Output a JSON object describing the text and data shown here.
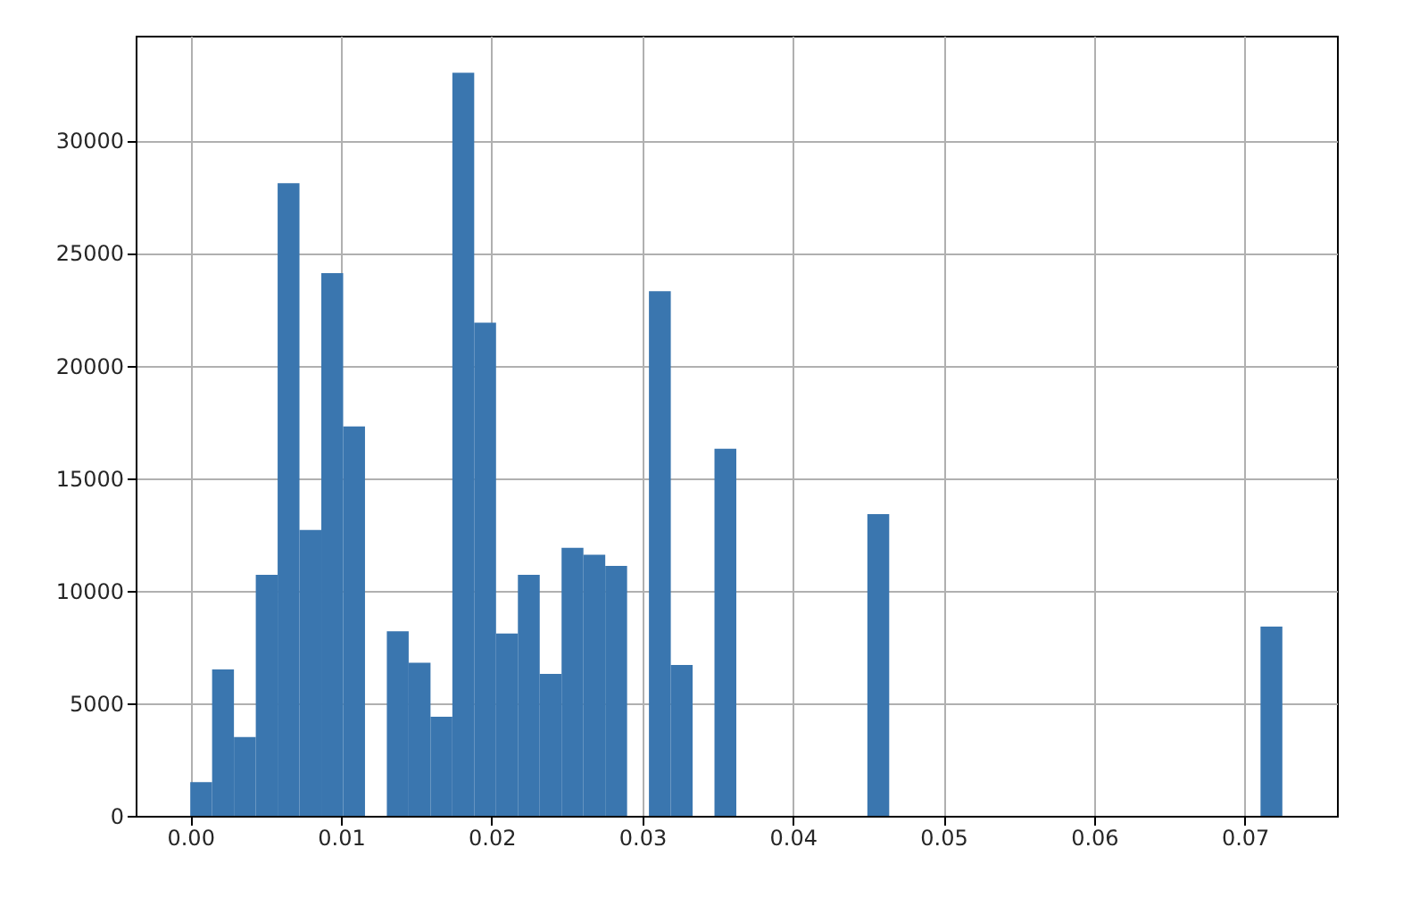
{
  "chart_data": {
    "type": "histogram",
    "bins": [
      0,
      0.00145,
      0.0029,
      0.00435,
      0.0058,
      0.00725,
      0.0087,
      0.01015,
      0.0116,
      0.01305,
      0.0145,
      0.01595,
      0.0174,
      0.01885,
      0.0203,
      0.02175,
      0.0232,
      0.02465,
      0.0261,
      0.02755,
      0.029,
      0.03045,
      0.0319,
      0.03335,
      0.0348,
      0.03625,
      0.0377,
      0.03915,
      0.0406,
      0.04205,
      0.0435,
      0.04495,
      0.0464,
      0.04785,
      0.0493,
      0.05075,
      0.0522,
      0.05365,
      0.0551,
      0.05655,
      0.058,
      0.05945,
      0.0609,
      0.06235,
      0.0638,
      0.06525,
      0.0667,
      0.06815,
      0.0696,
      0.07105,
      0.0725
    ],
    "values": [
      1500,
      6500,
      3500,
      10700,
      28100,
      12700,
      24100,
      17300,
      0,
      8200,
      6800,
      4400,
      33000,
      21900,
      8100,
      10700,
      6300,
      11900,
      11600,
      11100,
      0,
      23300,
      6700,
      0,
      16300,
      0,
      0,
      0,
      0,
      0,
      0,
      13400,
      0,
      0,
      0,
      0,
      0,
      0,
      0,
      0,
      0,
      0,
      0,
      0,
      0,
      0,
      0,
      0,
      0,
      8400
    ],
    "color": "#3a76af",
    "xlim": [
      -0.003625,
      0.076125
    ],
    "xticks": [
      {
        "value": 0,
        "label": "0.00"
      },
      0.01,
      0.02,
      0.03,
      0.04,
      0.05,
      0.06,
      0.07
    ],
    "ylim": [
      0,
      34650
    ],
    "yticks": [
      0,
      5000,
      10000,
      15000,
      20000,
      25000,
      30000
    ],
    "grid": true
  }
}
